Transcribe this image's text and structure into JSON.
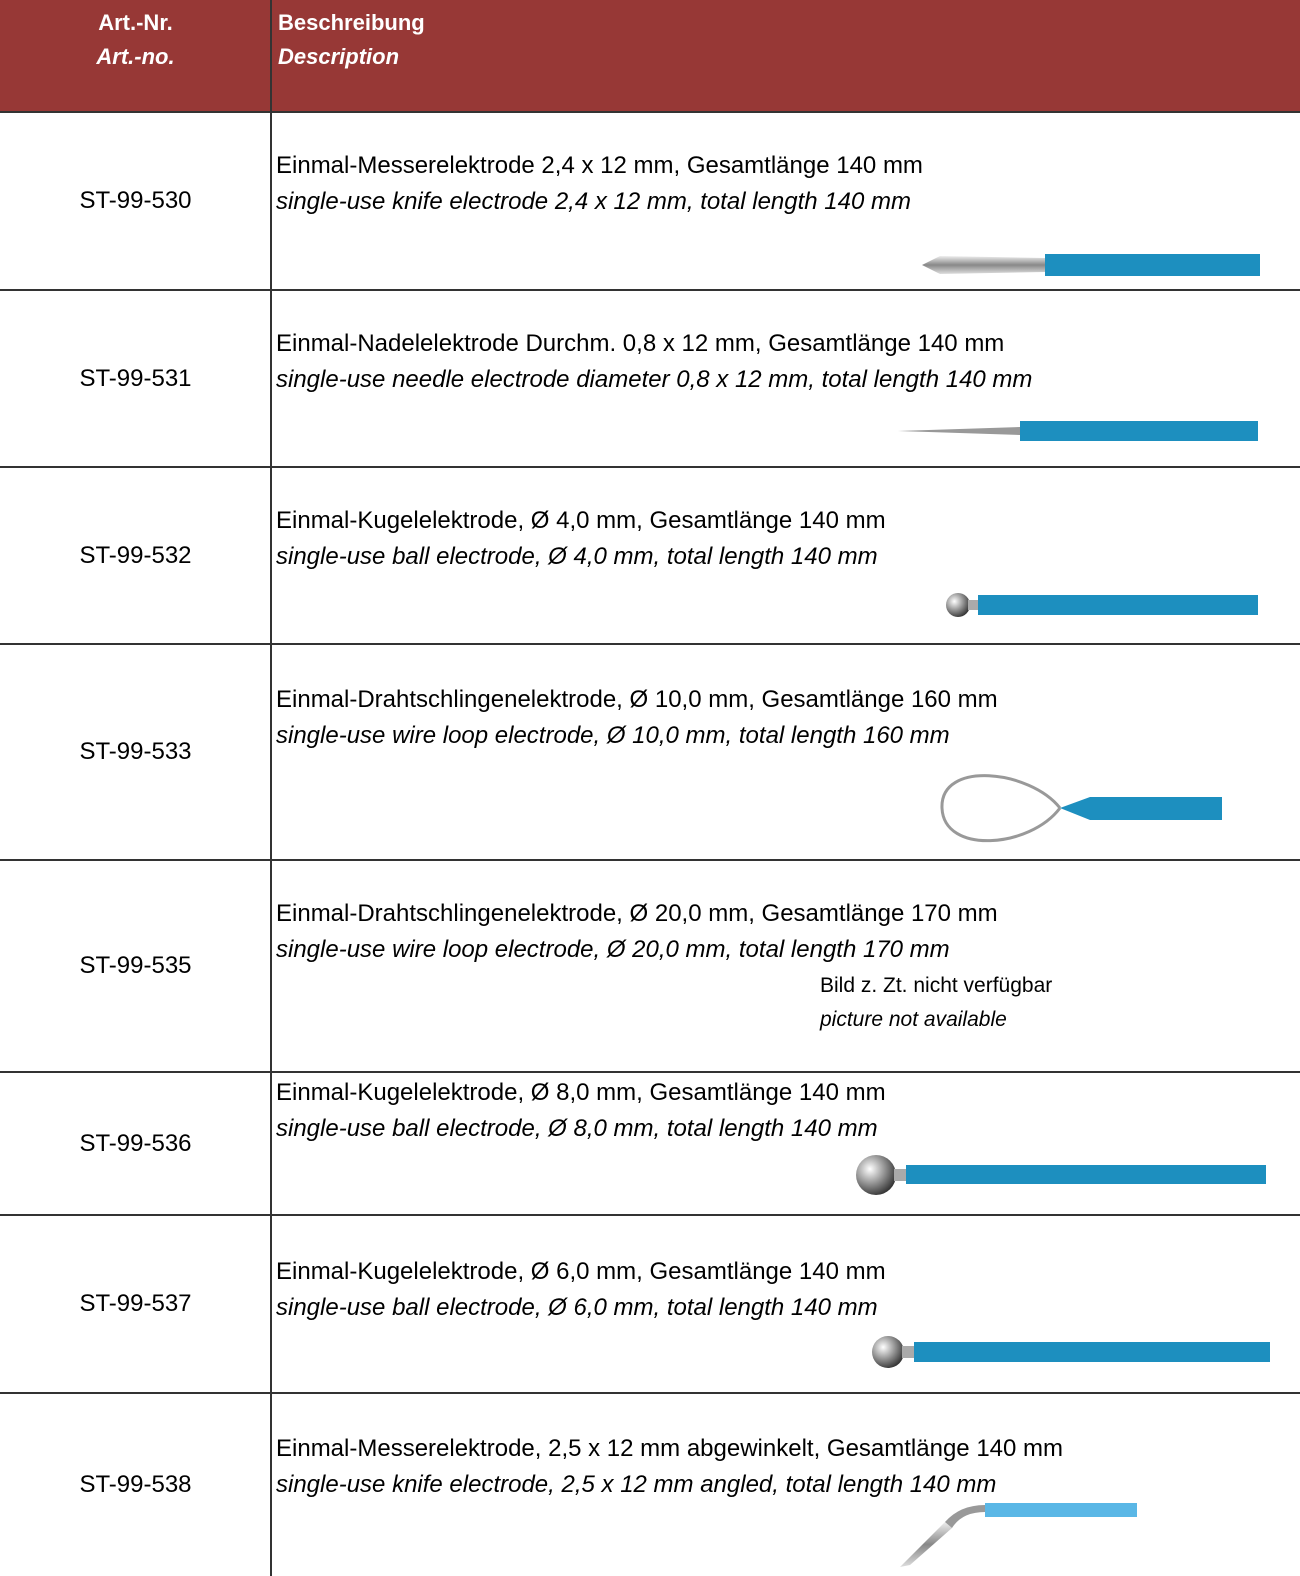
{
  "header": {
    "art_no": {
      "de": "Art.-Nr.",
      "en": "Art.-no."
    },
    "description": {
      "de": "Beschreibung",
      "en": "Description"
    }
  },
  "rows": [
    {
      "art_no": "ST-99-530",
      "de": "Einmal-Messerelektrode 2,4 x 12 mm, Gesamtlänge 140 mm",
      "en": "single-use knife electrode 2,4 x 12 mm, total length 140 mm"
    },
    {
      "art_no": "ST-99-531",
      "de": "Einmal-Nadelelektrode Durchm. 0,8 x 12 mm, Gesamtlänge 140 mm",
      "en": "single-use needle electrode diameter 0,8 x 12 mm, total length 140 mm"
    },
    {
      "art_no": "ST-99-532",
      "de": "Einmal-Kugelelektrode, Ø 4,0 mm, Gesamtlänge 140 mm",
      "en": "single-use ball electrode, Ø 4,0 mm, total length 140 mm"
    },
    {
      "art_no": "ST-99-533",
      "de": "Einmal-Drahtschlingenelektrode, Ø 10,0 mm, Gesamtlänge 160 mm",
      "en": "single-use wire loop electrode, Ø 10,0 mm, total length 160 mm"
    },
    {
      "art_no": "ST-99-535",
      "de": "Einmal-Drahtschlingenelektrode, Ø 20,0 mm, Gesamtlänge 170 mm",
      "en": "single-use wire loop electrode, Ø 20,0 mm, total length 170 mm",
      "note_de": "Bild z. Zt. nicht verfügbar",
      "note_en": "picture not available"
    },
    {
      "art_no": "ST-99-536",
      "de": "Einmal-Kugelelektrode, Ø 8,0 mm, Gesamtlänge 140 mm",
      "en": "single-use ball electrode, Ø 8,0 mm, total length 140 mm"
    },
    {
      "art_no": "ST-99-537",
      "de": "Einmal-Kugelelektrode, Ø 6,0 mm, Gesamtlänge 140 mm",
      "en": "single-use ball electrode, Ø 6,0 mm, total length 140 mm"
    },
    {
      "art_no": "ST-99-538",
      "de": "Einmal-Messerelektrode, 2,5 x 12 mm abgewinkelt, Gesamtlänge 140 mm",
      "en": "single-use knife electrode, 2,5 x 12 mm angled, total length 140 mm"
    }
  ]
}
